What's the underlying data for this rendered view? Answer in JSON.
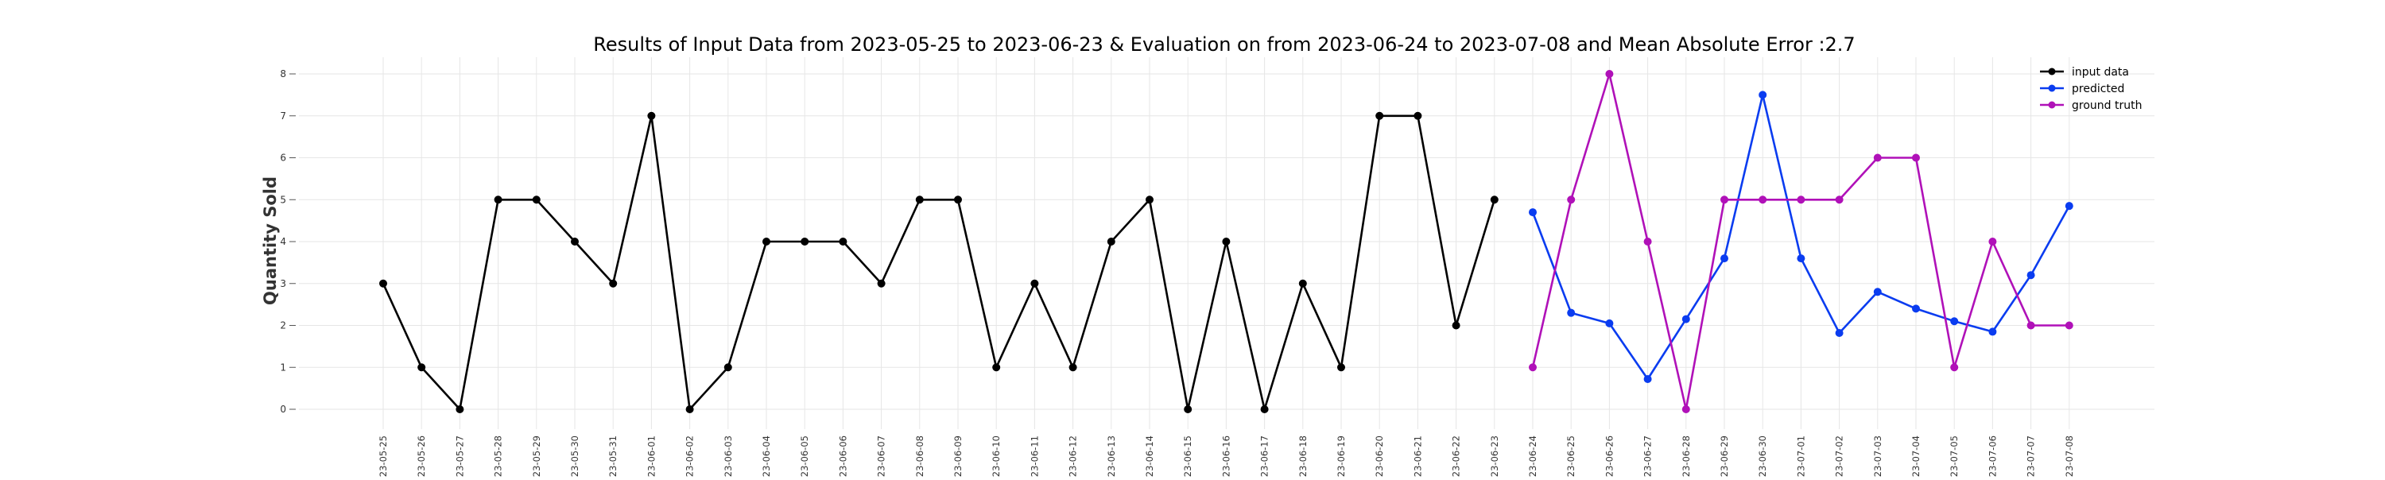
{
  "chart_data": {
    "type": "line",
    "title": "Results of Input Data from 2023-05-25 to 2023-06-23 & Evaluation on from 2023-06-24 to 2023-07-08 and Mean Absolute Error  :2.7",
    "xlabel": "",
    "ylabel": "Quantity Sold",
    "ylim": [
      0,
      8
    ],
    "yticks": [
      "0",
      "1",
      "2",
      "3",
      "4",
      "5",
      "6",
      "7",
      "8"
    ],
    "grid": true,
    "legend_position": "top-right",
    "x": [
      "2023-05-25",
      "2023-05-26",
      "2023-05-27",
      "2023-05-28",
      "2023-05-29",
      "2023-05-30",
      "2023-05-31",
      "2023-06-01",
      "2023-06-02",
      "2023-06-03",
      "2023-06-04",
      "2023-06-05",
      "2023-06-06",
      "2023-06-07",
      "2023-06-08",
      "2023-06-09",
      "2023-06-10",
      "2023-06-11",
      "2023-06-12",
      "2023-06-13",
      "2023-06-14",
      "2023-06-15",
      "2023-06-16",
      "2023-06-17",
      "2023-06-18",
      "2023-06-19",
      "2023-06-20",
      "2023-06-21",
      "2023-06-22",
      "2023-06-23",
      "2023-06-24",
      "2023-06-25",
      "2023-06-26",
      "2023-06-27",
      "2023-06-28",
      "2023-06-29",
      "2023-06-30",
      "2023-07-01",
      "2023-07-02",
      "2023-07-03",
      "2023-07-04",
      "2023-07-05",
      "2023-07-06",
      "2023-07-07",
      "2023-07-08"
    ],
    "xtick_labels": [
      "-23-05-25",
      "-23-05-26",
      "-23-05-27",
      "-23-05-28",
      "-23-05-29",
      "-23-05-30",
      "-23-05-31",
      "-23-06-01",
      "-23-06-02",
      "-23-06-03",
      "-23-06-04",
      "-23-06-05",
      "-23-06-06",
      "-23-06-07",
      "-23-06-08",
      "-23-06-09",
      "-23-06-10",
      "-23-06-11",
      "-23-06-12",
      "-23-06-13",
      "-23-06-14",
      "-23-06-15",
      "-23-06-16",
      "-23-06-17",
      "-23-06-18",
      "-23-06-19",
      "-23-06-20",
      "-23-06-21",
      "-23-06-22",
      "-23-06-23",
      "-23-06-24",
      "-23-06-25",
      "-23-06-26",
      "-23-06-27",
      "-23-06-28",
      "-23-06-29",
      "-23-06-30",
      "-23-07-01",
      "-23-07-02",
      "-23-07-03",
      "-23-07-04",
      "-23-07-05",
      "-23-07-06",
      "-23-07-07",
      "-23-07-08"
    ],
    "series": [
      {
        "name": "input data",
        "color": "#000000",
        "x": [
          "2023-05-25",
          "2023-05-26",
          "2023-05-27",
          "2023-05-28",
          "2023-05-29",
          "2023-05-30",
          "2023-05-31",
          "2023-06-01",
          "2023-06-02",
          "2023-06-03",
          "2023-06-04",
          "2023-06-05",
          "2023-06-06",
          "2023-06-07",
          "2023-06-08",
          "2023-06-09",
          "2023-06-10",
          "2023-06-11",
          "2023-06-12",
          "2023-06-13",
          "2023-06-14",
          "2023-06-15",
          "2023-06-16",
          "2023-06-17",
          "2023-06-18",
          "2023-06-19",
          "2023-06-20",
          "2023-06-21",
          "2023-06-22",
          "2023-06-23"
        ],
        "values": [
          3,
          1,
          0,
          5,
          5,
          4,
          3,
          7,
          0,
          1,
          4,
          4,
          4,
          3,
          5,
          5,
          1,
          3,
          1,
          4,
          5,
          0,
          4,
          0,
          3,
          1,
          7,
          7,
          2,
          5
        ]
      },
      {
        "name": "predicted",
        "color": "#0a3cf0",
        "x": [
          "2023-06-24",
          "2023-06-25",
          "2023-06-26",
          "2023-06-27",
          "2023-06-28",
          "2023-06-29",
          "2023-06-30",
          "2023-07-01",
          "2023-07-02",
          "2023-07-03",
          "2023-07-04",
          "2023-07-05",
          "2023-07-06",
          "2023-07-07",
          "2023-07-08"
        ],
        "values": [
          4.7,
          2.3,
          2.05,
          0.72,
          2.15,
          3.6,
          7.5,
          3.6,
          1.82,
          2.8,
          2.4,
          2.1,
          1.85,
          3.2,
          4.85
        ]
      },
      {
        "name": "ground truth",
        "color": "#b011b8",
        "x": [
          "2023-06-24",
          "2023-06-25",
          "2023-06-26",
          "2023-06-27",
          "2023-06-28",
          "2023-06-29",
          "2023-06-30",
          "2023-07-01",
          "2023-07-02",
          "2023-07-03",
          "2023-07-04",
          "2023-07-05",
          "2023-07-06",
          "2023-07-07",
          "2023-07-08"
        ],
        "values": [
          1,
          5,
          8,
          4,
          0,
          5,
          5,
          5,
          5,
          6,
          6,
          1,
          4,
          2,
          2
        ]
      }
    ]
  }
}
